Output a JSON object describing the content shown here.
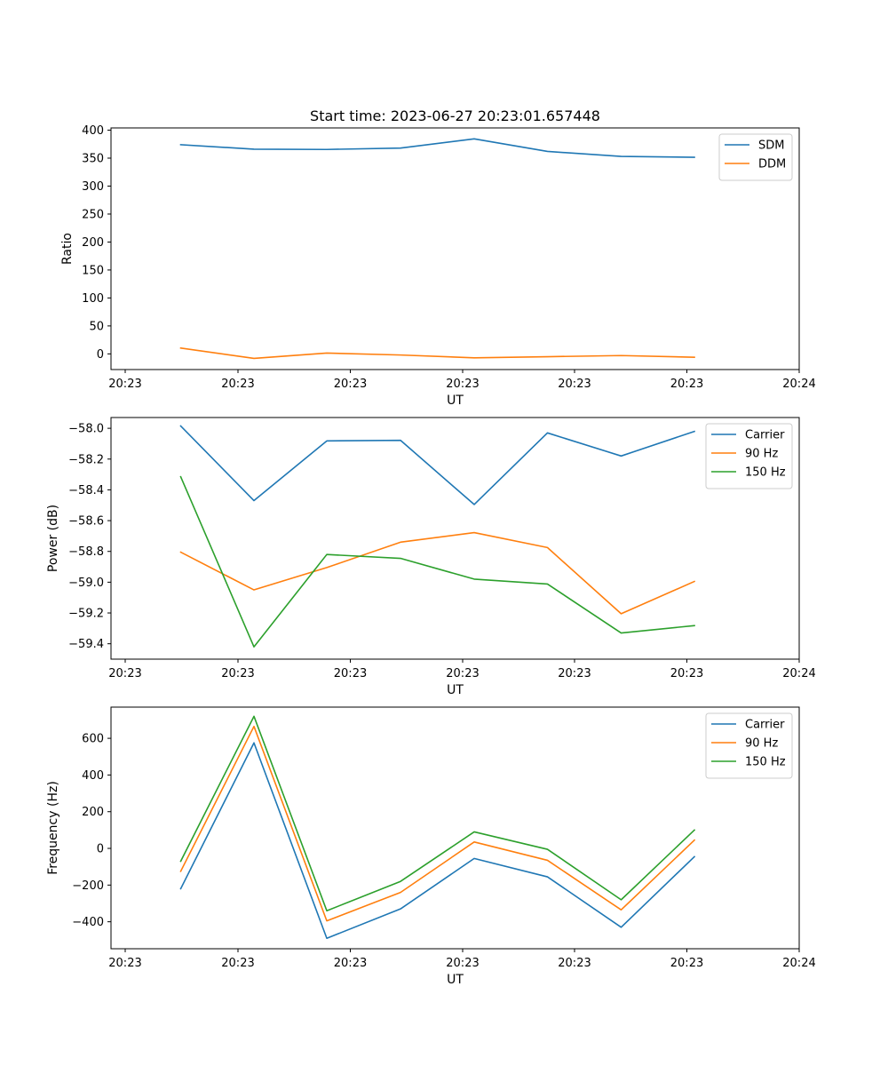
{
  "title": "Start time: 2023-06-27 20:23:01.657448",
  "colors": {
    "blue": "#1f77b4",
    "orange": "#ff7f0e",
    "green": "#2ca02c"
  },
  "chart_data": [
    {
      "type": "line",
      "title": "Start time: 2023-06-27 20:23:01.657448",
      "xlabel": "UT",
      "ylabel": "Ratio",
      "x_tick_labels": [
        "20:23",
        "20:23",
        "20:23",
        "20:23",
        "20:23",
        "20:23",
        "20:24"
      ],
      "yticks": [
        0,
        50,
        100,
        150,
        200,
        250,
        300,
        350,
        400
      ],
      "ylim": [
        -28,
        404
      ],
      "grid": false,
      "legend": "upper right",
      "series": [
        {
          "name": "SDM",
          "color": "#1f77b4",
          "values": [
            374,
            366,
            365.5,
            368,
            384.5,
            362,
            353,
            351.5
          ]
        },
        {
          "name": "DDM",
          "color": "#ff7f0e",
          "values": [
            10.5,
            -8,
            1.5,
            -2,
            -7,
            -5,
            -3,
            -6
          ]
        }
      ]
    },
    {
      "type": "line",
      "xlabel": "UT",
      "ylabel": "Power (dB)",
      "x_tick_labels": [
        "20:23",
        "20:23",
        "20:23",
        "20:23",
        "20:23",
        "20:23",
        "20:24"
      ],
      "yticks": [
        -58.0,
        -58.2,
        -58.4,
        -58.6,
        -58.8,
        -59.0,
        -59.2,
        -59.4
      ],
      "ytick_labels": [
        "−58.0",
        "−58.2",
        "−58.4",
        "−58.6",
        "−58.8",
        "−59.0",
        "−59.2",
        "−59.4"
      ],
      "ylim": [
        -59.5,
        -57.93
      ],
      "grid": false,
      "legend": "upper right",
      "series": [
        {
          "name": "Carrier",
          "color": "#1f77b4",
          "values": [
            -57.985,
            -58.47,
            -58.082,
            -58.078,
            -58.495,
            -58.03,
            -58.18,
            -58.02
          ]
        },
        {
          "name": "90 Hz",
          "color": "#ff7f0e",
          "values": [
            -58.805,
            -59.05,
            -58.905,
            -58.74,
            -58.678,
            -58.775,
            -59.205,
            -58.995
          ]
        },
        {
          "name": "150 Hz",
          "color": "#2ca02c",
          "values": [
            -58.315,
            -59.42,
            -58.82,
            -58.845,
            -58.98,
            -59.012,
            -59.33,
            -59.282
          ]
        }
      ]
    },
    {
      "type": "line",
      "xlabel": "UT",
      "ylabel": "Frequency (Hz)",
      "x_tick_labels": [
        "20:23",
        "20:23",
        "20:23",
        "20:23",
        "20:23",
        "20:23",
        "20:24"
      ],
      "yticks": [
        600,
        400,
        200,
        0,
        -200,
        -400
      ],
      "ytick_labels": [
        "600",
        "400",
        "200",
        "0",
        "−200",
        "−400"
      ],
      "ylim": [
        -547,
        770
      ],
      "grid": false,
      "legend": "upper right",
      "series": [
        {
          "name": "Carrier",
          "color": "#1f77b4",
          "values": [
            -220,
            575,
            -490,
            -330,
            -55,
            -155,
            -430,
            -45
          ]
        },
        {
          "name": "90 Hz",
          "color": "#ff7f0e",
          "values": [
            -125,
            665,
            -395,
            -240,
            35,
            -65,
            -335,
            45
          ]
        },
        {
          "name": "150 Hz",
          "color": "#2ca02c",
          "values": [
            -70,
            720,
            -340,
            -180,
            90,
            -5,
            -280,
            100
          ]
        }
      ]
    }
  ]
}
